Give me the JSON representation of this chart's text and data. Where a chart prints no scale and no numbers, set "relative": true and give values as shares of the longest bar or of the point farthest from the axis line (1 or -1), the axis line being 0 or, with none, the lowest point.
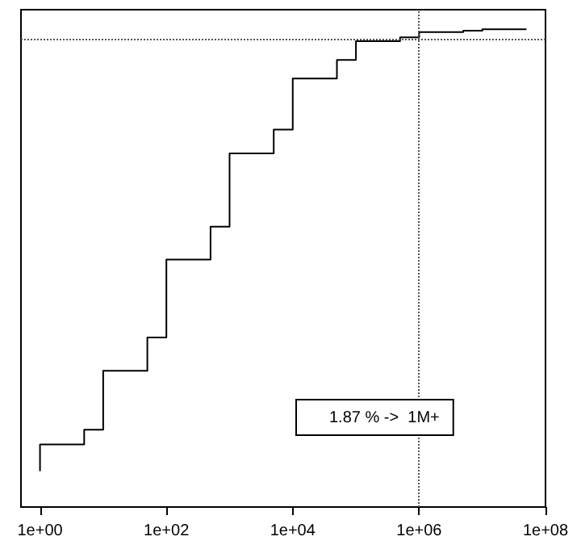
{
  "chart_data": {
    "type": "step",
    "relative": true,
    "log": "x",
    "grid": false,
    "tick_labels": "x",
    "marker": "none",
    "line_style": "solid",
    "x": [
      1,
      1,
      5,
      10,
      50,
      100,
      500,
      1000,
      5000,
      10000,
      50000,
      100000,
      500000,
      1000000,
      5000000,
      10000000,
      50000000
    ],
    "series": [
      {
        "color": "#000000",
        "values": [
          0.075,
          0.131,
          0.162,
          0.285,
          0.355,
          0.518,
          0.587,
          0.74,
          0.79,
          0.897,
          0.936,
          0.975,
          0.983,
          0.994,
          0.997,
          1,
          1
        ]
      }
    ],
    "xlim": [
      0.5,
      100000000
    ],
    "xticks": [
      {
        "value": 1,
        "label": "1e+00"
      },
      {
        "value": 100,
        "label": "1e+02"
      },
      {
        "value": 10000,
        "label": "1e+04"
      },
      {
        "value": 1000000,
        "label": "1e+06"
      },
      {
        "value": 100000000,
        "label": "1e+08"
      }
    ],
    "ref_lines": [
      {
        "axis": "y",
        "value": 0.983,
        "label": null,
        "color": "#555555",
        "line_style": "dotted"
      },
      {
        "axis": "x",
        "value": 1000000,
        "label": null,
        "color": "#555555",
        "line_style": "dotted"
      }
    ],
    "annotations": [
      "1.87 % ->  1M+"
    ]
  }
}
